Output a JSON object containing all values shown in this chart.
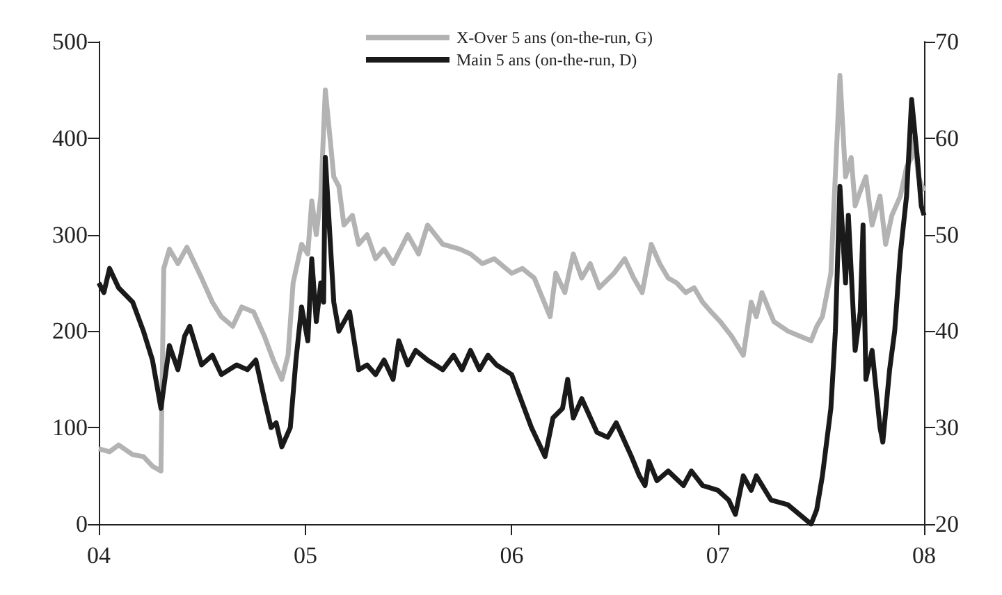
{
  "chart_data": {
    "type": "line",
    "legend": "top",
    "grid": false,
    "marker": "none",
    "line_style": "solid",
    "xlim": [
      "2004-01-01",
      "2008-01-01"
    ],
    "xticks": [
      {
        "value": "2004-01-01",
        "label": "04"
      },
      {
        "value": "2005-01-01",
        "label": "05"
      },
      {
        "value": "2006-01-01",
        "label": "06"
      },
      {
        "value": "2007-01-01",
        "label": "07"
      },
      {
        "value": "2008-01-01",
        "label": "08"
      }
    ],
    "ylim": [
      0,
      500
    ],
    "yticks": [
      0,
      100,
      200,
      300,
      400,
      500
    ],
    "y2lim": [
      20,
      70
    ],
    "y2ticks": [
      20,
      30,
      40,
      50,
      60,
      70
    ],
    "series": [
      {
        "name": "X-Over 5 ans (on-the-run, G)",
        "color": "#b3b3b3",
        "x": [
          "2004-01-01",
          "2004-01-20",
          "2004-02-05",
          "2004-03-01",
          "2004-03-20",
          "2004-04-05",
          "2004-04-20",
          "2004-04-25",
          "2004-05-05",
          "2004-05-20",
          "2004-06-05",
          "2004-07-01",
          "2004-07-20",
          "2004-08-05",
          "2004-08-25",
          "2004-09-10",
          "2004-10-01",
          "2004-10-20",
          "2004-11-05",
          "2004-11-20",
          "2004-12-01",
          "2004-12-10",
          "2004-12-25",
          "2005-01-05",
          "2005-01-12",
          "2005-01-20",
          "2005-01-28",
          "2005-02-05",
          "2005-02-20",
          "2005-03-01",
          "2005-03-10",
          "2005-03-25",
          "2005-04-05",
          "2005-04-20",
          "2005-05-05",
          "2005-05-20",
          "2005-06-05",
          "2005-07-01",
          "2005-07-20",
          "2005-08-05",
          "2005-09-01",
          "2005-10-01",
          "2005-10-20",
          "2005-11-10",
          "2005-12-01",
          "2006-01-01",
          "2006-01-20",
          "2006-02-10",
          "2006-03-10",
          "2006-03-20",
          "2006-04-05",
          "2006-04-20",
          "2006-05-05",
          "2006-05-20",
          "2006-06-05",
          "2006-07-01",
          "2006-07-20",
          "2006-08-05",
          "2006-08-20",
          "2006-09-05",
          "2006-09-20",
          "2006-10-05",
          "2006-10-20",
          "2006-11-05",
          "2006-11-20",
          "2006-12-05",
          "2006-12-20",
          "2007-01-05",
          "2007-01-25",
          "2007-02-15",
          "2007-03-01",
          "2007-03-10",
          "2007-03-20",
          "2007-04-10",
          "2007-05-05",
          "2007-05-25",
          "2007-06-15",
          "2007-06-25",
          "2007-07-05",
          "2007-07-20",
          "2007-08-05",
          "2007-08-15",
          "2007-08-25",
          "2007-09-01",
          "2007-09-10",
          "2007-09-20",
          "2007-10-01",
          "2007-10-15",
          "2007-10-25",
          "2007-11-05",
          "2007-11-20",
          "2007-12-01",
          "2007-12-10",
          "2007-12-15",
          "2007-12-22",
          "2008-01-01"
        ],
        "values": [
          78,
          75,
          82,
          72,
          70,
          60,
          55,
          265,
          285,
          270,
          287,
          255,
          230,
          215,
          205,
          225,
          220,
          195,
          170,
          150,
          175,
          250,
          290,
          280,
          335,
          300,
          340,
          450,
          360,
          350,
          310,
          320,
          290,
          300,
          275,
          285,
          270,
          300,
          280,
          310,
          290,
          285,
          280,
          270,
          275,
          260,
          265,
          255,
          215,
          260,
          240,
          280,
          255,
          270,
          245,
          260,
          275,
          255,
          240,
          290,
          270,
          255,
          250,
          240,
          245,
          230,
          220,
          210,
          195,
          175,
          230,
          215,
          240,
          210,
          200,
          195,
          190,
          205,
          215,
          260,
          465,
          360,
          380,
          330,
          345,
          360,
          310,
          340,
          290,
          320,
          340,
          370,
          380,
          400,
          360,
          345
        ]
      },
      {
        "name": "Main 5 ans (on-the-run, D)",
        "color": "#1a1a1a",
        "axis": "y2",
        "x": [
          "2004-01-01",
          "2004-01-10",
          "2004-01-20",
          "2004-02-05",
          "2004-03-01",
          "2004-03-20",
          "2004-04-05",
          "2004-04-20",
          "2004-05-05",
          "2004-05-20",
          "2004-06-01",
          "2004-06-10",
          "2004-07-01",
          "2004-07-20",
          "2004-08-05",
          "2004-09-01",
          "2004-09-20",
          "2004-10-05",
          "2004-10-20",
          "2004-11-01",
          "2004-11-10",
          "2004-11-20",
          "2004-12-05",
          "2004-12-15",
          "2004-12-25",
          "2005-01-05",
          "2005-01-12",
          "2005-01-20",
          "2005-01-28",
          "2005-02-02",
          "2005-02-05",
          "2005-02-20",
          "2005-03-01",
          "2005-03-20",
          "2005-04-05",
          "2005-04-20",
          "2005-05-05",
          "2005-05-20",
          "2005-06-05",
          "2005-06-15",
          "2005-07-01",
          "2005-07-15",
          "2005-08-05",
          "2005-09-01",
          "2005-09-20",
          "2005-10-05",
          "2005-10-20",
          "2005-11-05",
          "2005-11-20",
          "2005-12-05",
          "2006-01-01",
          "2006-01-20",
          "2006-02-05",
          "2006-03-01",
          "2006-03-15",
          "2006-04-01",
          "2006-04-10",
          "2006-04-20",
          "2006-05-05",
          "2006-06-01",
          "2006-06-20",
          "2006-07-05",
          "2006-08-01",
          "2006-08-15",
          "2006-08-25",
          "2006-09-01",
          "2006-09-15",
          "2006-10-05",
          "2006-11-01",
          "2006-11-15",
          "2006-12-05",
          "2007-01-01",
          "2007-01-20",
          "2007-02-01",
          "2007-02-15",
          "2007-03-01",
          "2007-03-10",
          "2007-04-05",
          "2007-05-05",
          "2007-06-15",
          "2007-06-25",
          "2007-07-05",
          "2007-07-20",
          "2007-07-28",
          "2007-08-05",
          "2007-08-15",
          "2007-08-20",
          "2007-09-01",
          "2007-09-10",
          "2007-09-15",
          "2007-09-20",
          "2007-10-01",
          "2007-10-15",
          "2007-10-20",
          "2007-11-01",
          "2007-11-10",
          "2007-11-20",
          "2007-12-01",
          "2007-12-10",
          "2007-12-20",
          "2007-12-27",
          "2008-01-01"
        ],
        "values": [
          45,
          44,
          46.5,
          44.5,
          43,
          40,
          37,
          32,
          38.5,
          36,
          39.5,
          40.5,
          36.5,
          37.5,
          35.5,
          36.5,
          36,
          37,
          33,
          30,
          30.5,
          28,
          30,
          37,
          42.5,
          39,
          47.5,
          41,
          45,
          43,
          58,
          43,
          40,
          42,
          36,
          36.5,
          35.5,
          37,
          35,
          39,
          36.5,
          38,
          37,
          36,
          37.5,
          36,
          38,
          36,
          37.5,
          36.5,
          35.5,
          32.5,
          30,
          27,
          31,
          32,
          35,
          31,
          33,
          29.5,
          29,
          30.5,
          27,
          25,
          24,
          26.5,
          24.5,
          25.5,
          24,
          25.5,
          24,
          23.5,
          22.5,
          21,
          25,
          23.5,
          25,
          22.5,
          22,
          20,
          21.5,
          25,
          32,
          40,
          55,
          45,
          52,
          38,
          42,
          51,
          35,
          38,
          30,
          28.5,
          36,
          40,
          48,
          54,
          64,
          58,
          53,
          52
        ]
      }
    ]
  }
}
